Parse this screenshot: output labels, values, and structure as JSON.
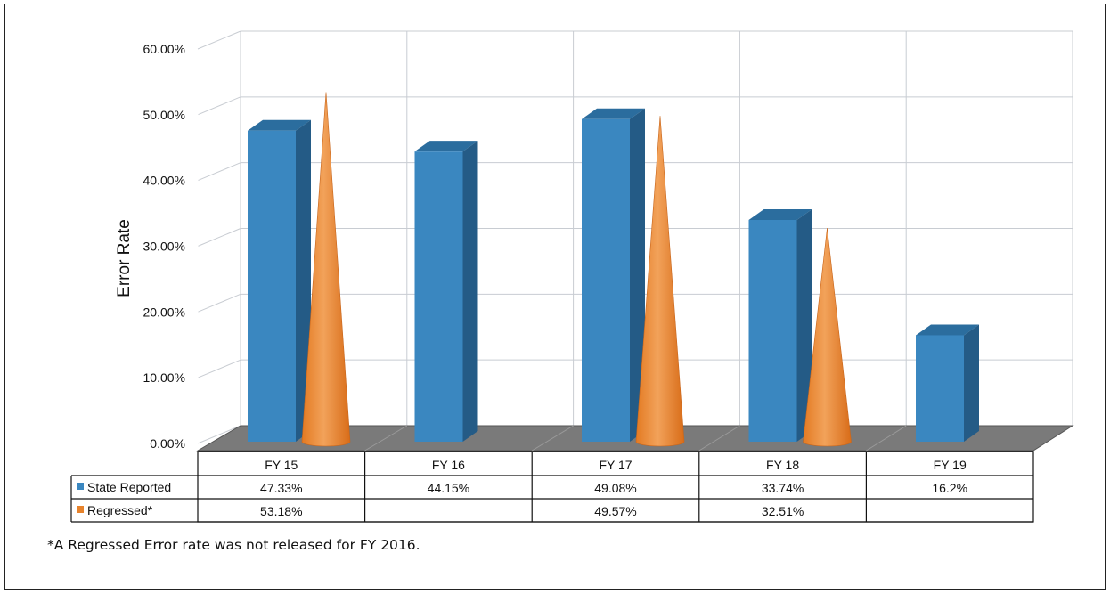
{
  "chart_data": {
    "type": "bar",
    "ylabel": "Error Rate",
    "ylim": [
      0,
      60
    ],
    "yticks": [
      "0.00%",
      "10.00%",
      "20.00%",
      "30.00%",
      "40.00%",
      "50.00%",
      "60.00%"
    ],
    "categories": [
      "FY 15",
      "FY 16",
      "FY 17",
      "FY 18",
      "FY 19"
    ],
    "series": [
      {
        "name": "State Reported",
        "shape": "box",
        "color": "#3a87c0",
        "values": [
          47.33,
          44.15,
          49.08,
          33.74,
          16.2
        ],
        "labels": [
          "47.33%",
          "44.15%",
          "49.08%",
          "33.74%",
          "16.2%"
        ]
      },
      {
        "name": "Regressed*",
        "shape": "cone",
        "color": "#e7832c",
        "values": [
          53.18,
          null,
          49.57,
          32.51,
          null
        ],
        "labels": [
          "53.18%",
          "",
          "49.57%",
          "32.51%",
          ""
        ]
      }
    ],
    "grid": true,
    "legend": "data-table"
  },
  "footnote": "*A Regressed Error rate was not released for FY 2016."
}
